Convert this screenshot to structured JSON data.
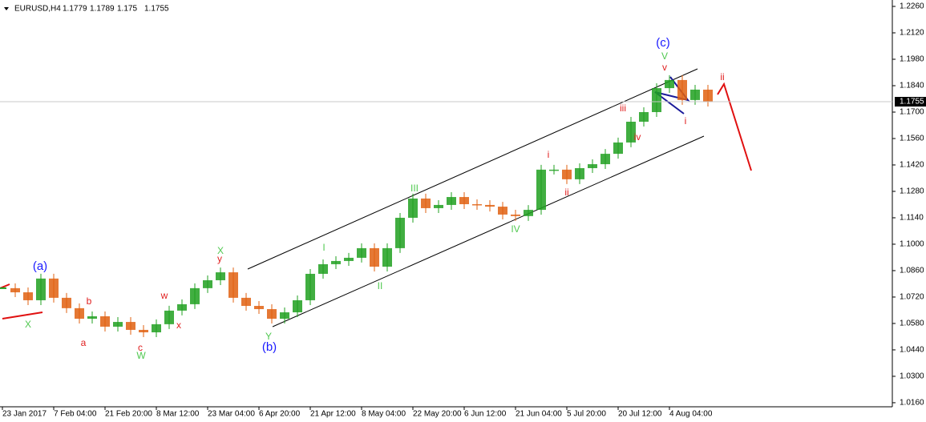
{
  "chart_data": {
    "type": "candlestick",
    "symbol": "EURUSD,H4",
    "last_bar": {
      "open": 1.1779,
      "high": 1.1789,
      "low": 1.175,
      "close": 1.1755
    },
    "current_price": 1.1755,
    "up_color": "#20a020",
    "down_color": "#e06010",
    "categories": [
      "23 Jan 2017",
      null,
      null,
      null,
      "7 Feb 04:00",
      null,
      null,
      null,
      "21 Feb 20:00",
      null,
      null,
      null,
      "8 Mar 12:00",
      null,
      null,
      null,
      "23 Mar 04:00",
      null,
      null,
      null,
      "6 Apr 20:00",
      null,
      null,
      null,
      "21 Apr 12:00",
      null,
      null,
      null,
      "8 May 04:00",
      null,
      null,
      null,
      "22 May 20:00",
      null,
      null,
      null,
      "6 Jun 12:00",
      null,
      null,
      null,
      "21 Jun 04:00",
      null,
      null,
      null,
      "5 Jul 20:00",
      null,
      null,
      null,
      "20 Jul 12:00",
      null,
      null,
      null,
      "4 Aug 04:00",
      null,
      null,
      null
    ],
    "close": [
      1.0767,
      1.0745,
      1.0703,
      1.0818,
      1.0716,
      1.0661,
      1.0605,
      1.0618,
      1.0563,
      1.0588,
      1.0546,
      1.0533,
      1.0576,
      1.0648,
      1.0682,
      1.0767,
      1.0809,
      1.0851,
      1.0716,
      1.0673,
      1.0656,
      1.0605,
      1.0639,
      1.0703,
      1.0843,
      1.0894,
      1.0911,
      1.0928,
      1.0979,
      1.0881,
      1.0979,
      1.114,
      1.1242,
      1.1191,
      1.1208,
      1.125,
      1.1212,
      1.1208,
      1.1199,
      1.1157,
      1.1149,
      1.1182,
      1.1395,
      1.1395,
      1.1344,
      1.1403,
      1.1424,
      1.1479,
      1.1539,
      1.1649,
      1.17,
      1.1827,
      1.187,
      1.1764,
      1.1819,
      1.1755
    ],
    "ylim": [
      1.013,
      1.2294
    ],
    "yticks": [
      {
        "value": 1.016,
        "label": "1.0160"
      },
      {
        "value": 1.03,
        "label": "1.0300"
      },
      {
        "value": 1.044,
        "label": "1.0440"
      },
      {
        "value": 1.058,
        "label": "1.0580"
      },
      {
        "value": 1.072,
        "label": "1.0720"
      },
      {
        "value": 1.086,
        "label": "1.0860"
      },
      {
        "value": 1.1,
        "label": "1.1000"
      },
      {
        "value": 1.114,
        "label": "1.1140"
      },
      {
        "value": 1.128,
        "label": "1.1280"
      },
      {
        "value": 1.142,
        "label": "1.1420"
      },
      {
        "value": 1.156,
        "label": "1.1560"
      },
      {
        "value": 1.17,
        "label": "1.1700"
      },
      {
        "value": 1.184,
        "label": "1.1840"
      },
      {
        "value": 1.198,
        "label": "1.1980"
      },
      {
        "value": 1.212,
        "label": "1.2120"
      },
      {
        "value": 1.226,
        "label": "1.2260"
      }
    ],
    "annotations": [
      {
        "text": "(a)",
        "color": "#1a1aff"
      },
      {
        "text": "X",
        "color": "#50c850"
      },
      {
        "text": "a",
        "color": "#e02020"
      },
      {
        "text": "b",
        "color": "#e02020"
      },
      {
        "text": "c",
        "color": "#e02020"
      },
      {
        "text": "W",
        "color": "#50c850"
      },
      {
        "text": "w",
        "color": "#e02020"
      },
      {
        "text": "x",
        "color": "#e02020"
      },
      {
        "text": "y",
        "color": "#e02020"
      },
      {
        "text": "X",
        "color": "#50c850"
      },
      {
        "text": "Y",
        "color": "#50c850"
      },
      {
        "text": "(b)",
        "color": "#1a1aff"
      },
      {
        "text": "I",
        "color": "#50c850"
      },
      {
        "text": "II",
        "color": "#50c850"
      },
      {
        "text": "III",
        "color": "#50c850"
      },
      {
        "text": "IV",
        "color": "#50c850"
      },
      {
        "text": "V",
        "color": "#50c850"
      },
      {
        "text": "(c)",
        "color": "#1a1aff"
      },
      {
        "text": "i",
        "color": "#e02020"
      },
      {
        "text": "ii",
        "color": "#e02020"
      },
      {
        "text": "iii",
        "color": "#e02020"
      },
      {
        "text": "iv",
        "color": "#e02020"
      },
      {
        "text": "v",
        "color": "#e02020"
      },
      {
        "text": "i",
        "color": "#e02020"
      },
      {
        "text": "ii",
        "color": "#e02020"
      }
    ]
  }
}
